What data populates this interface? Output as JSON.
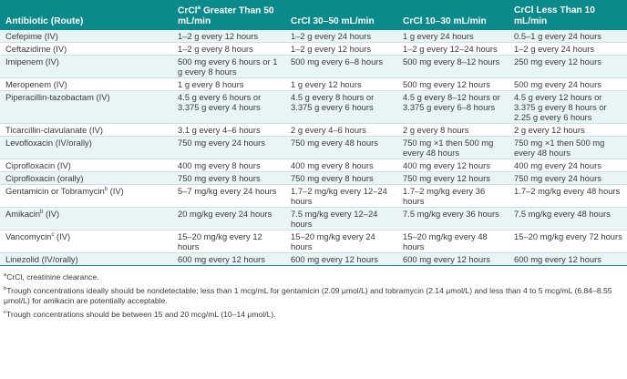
{
  "table": {
    "headers": [
      {
        "pre": "Antibiotic (Route)",
        "sup": "",
        "post": ""
      },
      {
        "pre": "CrCl",
        "sup": "a",
        "post": " Greater Than 50 mL/min"
      },
      {
        "pre": "CrCl 30–50 mL/min",
        "sup": "",
        "post": ""
      },
      {
        "pre": "CrCl 10–30 mL/min",
        "sup": "",
        "post": ""
      },
      {
        "pre": "CrCl Less Than 10 mL/min",
        "sup": "",
        "post": ""
      }
    ],
    "rows": [
      {
        "drug": "Cefepime (IV)",
        "c1": "1–2 g every 12 hours",
        "c2": "1–2 g every 24 hours",
        "c3": "1 g every 24 hours",
        "c4": "0.5–1 g every 24 hours"
      },
      {
        "drug": "Ceftazidime (IV)",
        "c1": "1–2 g every 8 hours",
        "c2": "1–2 g every 12 hours",
        "c3": "1–2 g every 12–24 hours",
        "c4": "1–2 g every 24 hours"
      },
      {
        "drug": "Imipenem (IV)",
        "c1": "500 mg every 6 hours or 1 g every 8 hours",
        "c2": "500 mg every 6–8 hours",
        "c3": "500 mg every 8–12 hours",
        "c4": "250 mg every 12 hours"
      },
      {
        "drug": "Meropenem (IV)",
        "c1": "1 g every 8 hours",
        "c2": "1 g every 12 hours",
        "c3": "500 mg every 12 hours",
        "c4": "500 mg every 24 hours"
      },
      {
        "drug": "Piperacillin-tazobactam (IV)",
        "c1": "4.5 g every 6 hours or 3.375 g every 4 hours",
        "c2": "4.5 g every 8 hours or 3.375 g every 6 hours",
        "c3": "4.5 g every 8–12 hours or 3.375 g every 6–8 hours",
        "c4": "4.5 g every 12 hours or 3.375 g every 8 hours or 2.25 g every 6 hours"
      },
      {
        "drug": "Ticarcillin-clavulanate (IV)",
        "c1": "3.1 g every 4–6 hours",
        "c2": "2 g every 4–6 hours",
        "c3": "2 g every 8 hours",
        "c4": "2 g every 12 hours"
      },
      {
        "drug": "Levofloxacin (IV/orally)",
        "c1": "750 mg every 24 hours",
        "c2": "750 mg every 48 hours",
        "c3": "750 mg ×1 then 500 mg every 48 hours",
        "c4": "750 mg ×1 then 500 mg every 48 hours"
      },
      {
        "drug": "Ciprofloxacin (IV)",
        "c1": "400 mg every 8 hours",
        "c2": "400 mg every 8 hours",
        "c3": "400 mg every 12 hours",
        "c4": "400 mg every 24 hours"
      },
      {
        "drug": "Ciprofloxacin (orally)",
        "c1": "750 mg every 8 hours",
        "c2": "750 mg every 8 hours",
        "c3": "750 mg every 12 hours",
        "c4": "750 mg every 24 hours"
      },
      {
        "drug": "Gentamicin or Tobramycin",
        "drug_sup": "b",
        "drug_post": " (IV)",
        "c1": "5–7 mg/kg every 24 hours",
        "c2": "1.7–2 mg/kg every 12–24 hours",
        "c3": "1.7–2 mg/kg every 36 hours",
        "c4": "1.7–2 mg/kg every 48 hours"
      },
      {
        "drug": "Amikacin",
        "drug_sup": "b",
        "drug_post": " (IV)",
        "c1": "20 mg/kg every 24 hours",
        "c2": "7.5 mg/kg every 12–24 hours",
        "c3": "7.5 mg/kg every 36 hours",
        "c4": "7.5 mg/kg every 48 hours"
      },
      {
        "drug": "Vancomycin",
        "drug_sup": "c",
        "drug_post": " (IV)",
        "c1": "15–20 mg/kg every 12 hours",
        "c2": "15–20 mg/kg every 24 hours",
        "c3": "15–20 mg/kg every 48 hours",
        "c4": "15–20 mg/kg every 72 hours"
      },
      {
        "drug": "Linezolid (IV/orally)",
        "c1": "600 mg every 12 hours",
        "c2": "600 mg every 12 hours",
        "c3": "600 mg every 12 hours",
        "c4": "600 mg every 12 hours"
      }
    ]
  },
  "footnotes": [
    {
      "mark": "a",
      "text": "CrCl, creatinine clearance."
    },
    {
      "mark": "b",
      "text": "Trough concentrations ideally should be nondetectable; less than 1 mcg/mL for gentamicin (2.09 μmol/L) and tobramycin (2.14 μmol/L) and less than 4 to 5 mcg/mL (6.84–8.55 μmol/L) for amikacin are potentially acceptable."
    },
    {
      "mark": "c",
      "text": "Trough concentrations should be between 15 and 20 mcg/mL (10–14 μmol/L)."
    }
  ],
  "colors": {
    "header": "#0b8a8c",
    "stripe": "#e9f4f5",
    "text": "#3a3a3a"
  }
}
